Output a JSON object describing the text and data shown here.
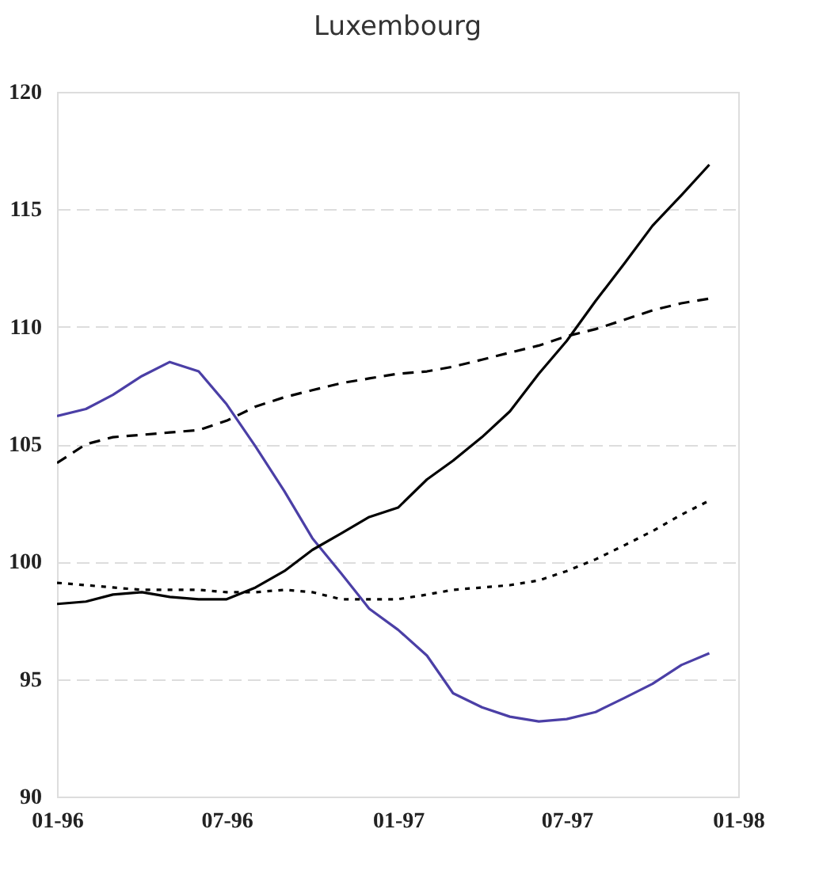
{
  "chart_data": {
    "type": "line",
    "title": "Luxembourg",
    "x": [
      "1996-01",
      "1996-02",
      "1996-03",
      "1996-04",
      "1996-05",
      "1996-06",
      "1996-07",
      "1996-08",
      "1996-09",
      "1996-10",
      "1996-11",
      "1996-12",
      "1997-01",
      "1997-02",
      "1997-03",
      "1997-04",
      "1997-05",
      "1997-06",
      "1997-07",
      "1997-08",
      "1997-09",
      "1997-10",
      "1997-11",
      "1997-12"
    ],
    "series": [
      {
        "color": "#4b3fa6",
        "line_style": "solid",
        "values": [
          106.2,
          106.5,
          107.1,
          107.9,
          108.5,
          108.1,
          106.7,
          104.9,
          103.0,
          101.0,
          99.5,
          98.0,
          97.1,
          96.0,
          94.4,
          93.8,
          93.4,
          93.2,
          93.3,
          93.6,
          94.2,
          94.8,
          95.6,
          96.1
        ]
      },
      {
        "color": "#000000",
        "line_style": "solid",
        "values": [
          98.2,
          98.3,
          98.6,
          98.7,
          98.5,
          98.4,
          98.4,
          98.9,
          99.6,
          100.5,
          101.2,
          101.9,
          102.3,
          103.5,
          104.3,
          105.3,
          106.4,
          108.0,
          109.4,
          111.1,
          112.7,
          114.3,
          115.6,
          116.9
        ]
      },
      {
        "color": "#000000",
        "line_style": "dashed",
        "values": [
          104.2,
          105.0,
          105.3,
          105.4,
          105.5,
          105.6,
          106.0,
          106.6,
          107.0,
          107.3,
          107.6,
          107.8,
          108.0,
          108.1,
          108.3,
          108.6,
          108.9,
          109.2,
          109.6,
          109.9,
          110.3,
          110.7,
          111.0,
          111.2
        ]
      },
      {
        "color": "#000000",
        "line_style": "dotted",
        "values": [
          99.1,
          99.0,
          98.9,
          98.8,
          98.8,
          98.8,
          98.7,
          98.7,
          98.8,
          98.7,
          98.4,
          98.4,
          98.4,
          98.6,
          98.8,
          98.9,
          99.0,
          99.2,
          99.6,
          100.1,
          100.7,
          101.3,
          102.0,
          102.6
        ]
      }
    ],
    "xlim": [
      "1996-01",
      "1998-01"
    ],
    "xticks": [
      {
        "value": "1996-01",
        "label": "01-96"
      },
      {
        "value": "1996-07",
        "label": "07-96"
      },
      {
        "value": "1997-01",
        "label": "01-97"
      },
      {
        "value": "1997-07",
        "label": "07-97"
      },
      {
        "value": "1998-01",
        "label": "01-98"
      }
    ],
    "ylim": [
      90,
      120
    ],
    "yticks": [
      90,
      95,
      100,
      105,
      110,
      115,
      120
    ],
    "grid": "y"
  }
}
